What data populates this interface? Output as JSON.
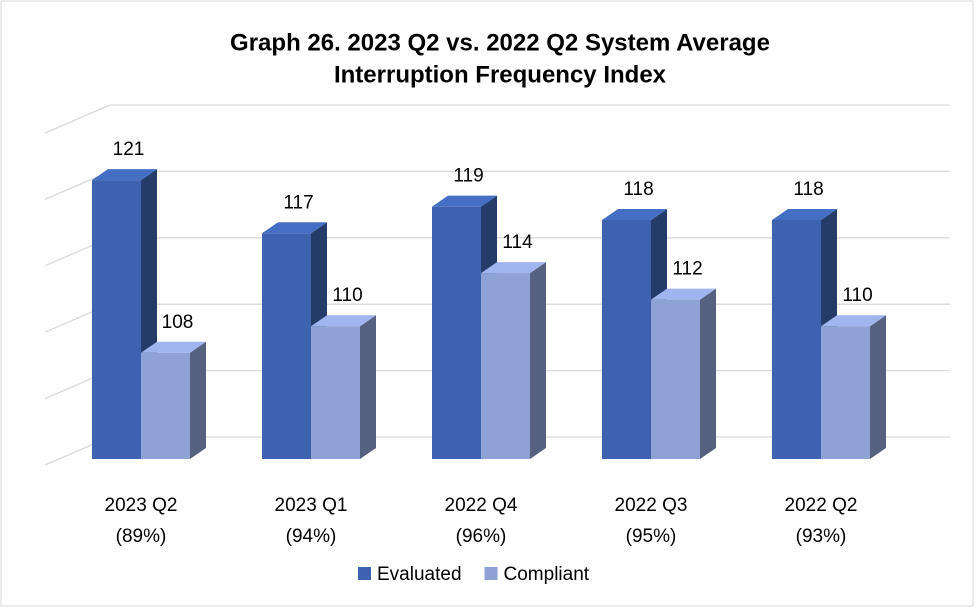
{
  "chart_data": {
    "type": "bar3d",
    "title": [
      "Graph 26. 2023 Q2 vs. 2022 Q2 System Average",
      "Interruption Frequency Index"
    ],
    "categories": [
      [
        "2023 Q2",
        "(89%)"
      ],
      [
        "2023 Q1",
        "(94%)"
      ],
      [
        "2022 Q4",
        "(96%)"
      ],
      [
        "2022 Q3",
        "(95%)"
      ],
      [
        "2022 Q2",
        "(93%)"
      ]
    ],
    "series": [
      {
        "name": "Evaluated",
        "color": "#3d63b0",
        "values": [
          121,
          117,
          119,
          118,
          118
        ]
      },
      {
        "name": "Compliant",
        "color": "#8fa2d6",
        "values": [
          108,
          110,
          114,
          112,
          110
        ]
      }
    ],
    "ylim": [
      100,
      125
    ],
    "yticks": [
      100,
      105,
      110,
      115,
      120,
      125
    ],
    "grid": true,
    "legend": "bottom"
  }
}
